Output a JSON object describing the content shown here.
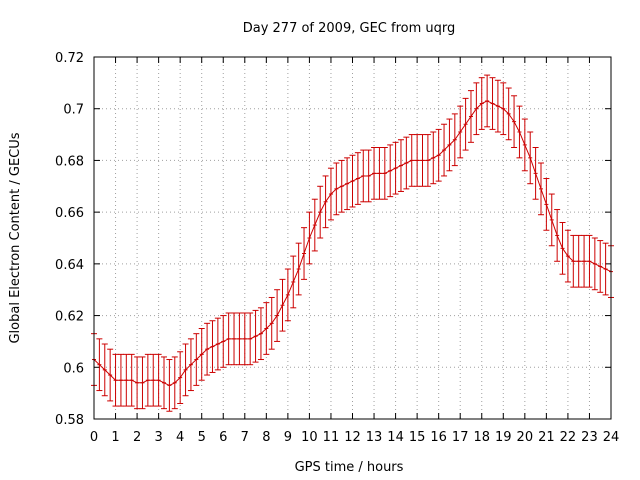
{
  "chart_data": {
    "type": "line",
    "title": "Day 277 of 2009, GEC from uqrg",
    "xlabel": "GPS time / hours",
    "ylabel": "Global Electron Content / GECUs",
    "xlim": [
      0,
      24
    ],
    "ylim": [
      0.58,
      0.72
    ],
    "xticks": [
      0,
      1,
      2,
      3,
      4,
      5,
      6,
      7,
      8,
      9,
      10,
      11,
      12,
      13,
      14,
      15,
      16,
      17,
      18,
      19,
      20,
      21,
      22,
      23,
      24
    ],
    "yticks": [
      0.58,
      0.6,
      0.62,
      0.64,
      0.66,
      0.68,
      0.7,
      0.72
    ],
    "ytick_labels": [
      "0.58",
      "0.6",
      "0.62",
      "0.64",
      "0.66",
      "0.68",
      "0.7",
      "0.72"
    ],
    "grid": true,
    "series": [
      {
        "name": "GEC",
        "color": "#cc0000",
        "error": 0.01,
        "x": [
          0.0,
          0.25,
          0.5,
          0.75,
          1.0,
          1.25,
          1.5,
          1.75,
          2.0,
          2.25,
          2.5,
          2.75,
          3.0,
          3.25,
          3.5,
          3.75,
          4.0,
          4.25,
          4.5,
          4.75,
          5.0,
          5.25,
          5.5,
          5.75,
          6.0,
          6.25,
          6.5,
          6.75,
          7.0,
          7.25,
          7.5,
          7.75,
          8.0,
          8.25,
          8.5,
          8.75,
          9.0,
          9.25,
          9.5,
          9.75,
          10.0,
          10.25,
          10.5,
          10.75,
          11.0,
          11.25,
          11.5,
          11.75,
          12.0,
          12.25,
          12.5,
          12.75,
          13.0,
          13.25,
          13.5,
          13.75,
          14.0,
          14.25,
          14.5,
          14.75,
          15.0,
          15.25,
          15.5,
          15.75,
          16.0,
          16.25,
          16.5,
          16.75,
          17.0,
          17.25,
          17.5,
          17.75,
          18.0,
          18.25,
          18.5,
          18.75,
          19.0,
          19.25,
          19.5,
          19.75,
          20.0,
          20.25,
          20.5,
          20.75,
          21.0,
          21.25,
          21.5,
          21.75,
          22.0,
          22.25,
          22.5,
          22.75,
          23.0,
          23.25,
          23.5,
          23.75,
          24.0
        ],
        "y": [
          0.603,
          0.601,
          0.599,
          0.597,
          0.595,
          0.595,
          0.595,
          0.595,
          0.594,
          0.594,
          0.595,
          0.595,
          0.595,
          0.594,
          0.593,
          0.594,
          0.596,
          0.599,
          0.601,
          0.603,
          0.605,
          0.607,
          0.608,
          0.609,
          0.61,
          0.611,
          0.611,
          0.611,
          0.611,
          0.611,
          0.612,
          0.613,
          0.615,
          0.617,
          0.62,
          0.624,
          0.628,
          0.633,
          0.638,
          0.644,
          0.65,
          0.655,
          0.66,
          0.664,
          0.667,
          0.669,
          0.67,
          0.671,
          0.672,
          0.673,
          0.674,
          0.674,
          0.675,
          0.675,
          0.675,
          0.676,
          0.677,
          0.678,
          0.679,
          0.68,
          0.68,
          0.68,
          0.68,
          0.681,
          0.682,
          0.684,
          0.686,
          0.688,
          0.691,
          0.694,
          0.697,
          0.7,
          0.702,
          0.703,
          0.702,
          0.701,
          0.7,
          0.698,
          0.695,
          0.691,
          0.686,
          0.681,
          0.675,
          0.669,
          0.663,
          0.657,
          0.651,
          0.646,
          0.643,
          0.641,
          0.641,
          0.641,
          0.641,
          0.64,
          0.639,
          0.638,
          0.637
        ]
      }
    ]
  }
}
